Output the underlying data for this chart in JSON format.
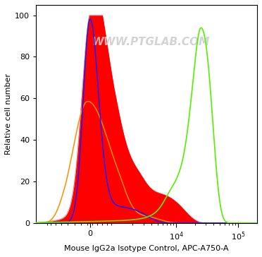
{
  "title": "",
  "xlabel": "Mouse IgG2a Isotype Control, APC-A750-A",
  "ylabel": "Relative cell number",
  "watermark": "WWW.PTGLAB.COM",
  "ylim": [
    0,
    105
  ],
  "xlim_left": -3000,
  "xlim_right": 200000,
  "linthresh": 1000,
  "linscale": 0.35,
  "background_color": "#ffffff",
  "yticks": [
    0,
    20,
    40,
    60,
    80,
    100
  ],
  "xtick_positions": [
    0,
    10000,
    100000
  ],
  "xtick_labels": [
    "0",
    "10$^4$",
    "10$^5$"
  ]
}
